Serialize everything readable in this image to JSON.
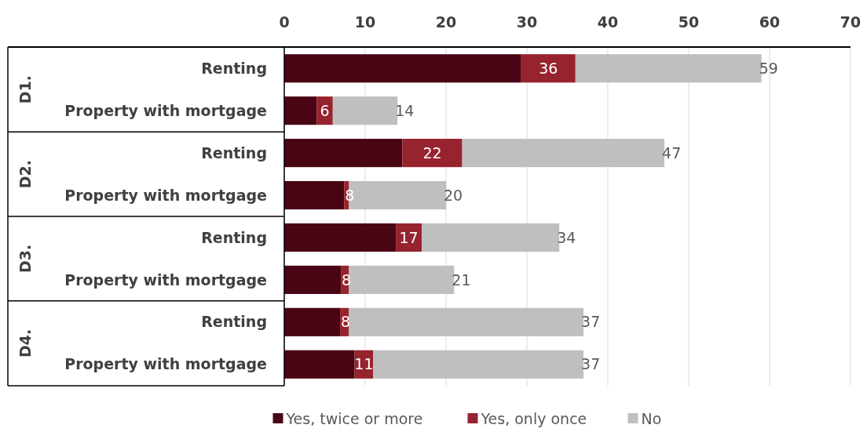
{
  "chart_data": {
    "type": "bar",
    "orientation": "horizontal",
    "stacked": true,
    "categories": [
      "Renting",
      "Property with mortgage",
      "Renting",
      "Property with mortgage",
      "Renting",
      "Property with mortgage",
      "Renting",
      "Property with mortgage"
    ],
    "annotations": [
      "36",
      "6",
      "22",
      "8",
      "17",
      "8",
      "8",
      "11",
      "D1.",
      "D2.",
      "D3.",
      "D4."
    ],
    "series": [
      {
        "name": "Yes, twice or more",
        "color": "#4a0514",
        "values": [
          29.3,
          4,
          14.6,
          7.4,
          13.8,
          7,
          6.9,
          8.7
        ]
      },
      {
        "name": "Yes, only once",
        "color": "#97232f",
        "values": [
          6.7,
          2,
          7.4,
          0.6,
          3.2,
          1,
          1.1,
          2.3
        ]
      },
      {
        "name": "No",
        "color": "#bfbfbf",
        "values": [
          23,
          8,
          25,
          12,
          17,
          13,
          29,
          26
        ]
      }
    ],
    "totals": [
      "59",
      "14",
      "47",
      "20",
      "34",
      "21",
      "37",
      "37"
    ],
    "xlim": [
      0,
      70
    ],
    "xticks": [
      0,
      10,
      20,
      30,
      40,
      50,
      60,
      70
    ],
    "grid": "x",
    "legend": "bottom"
  }
}
